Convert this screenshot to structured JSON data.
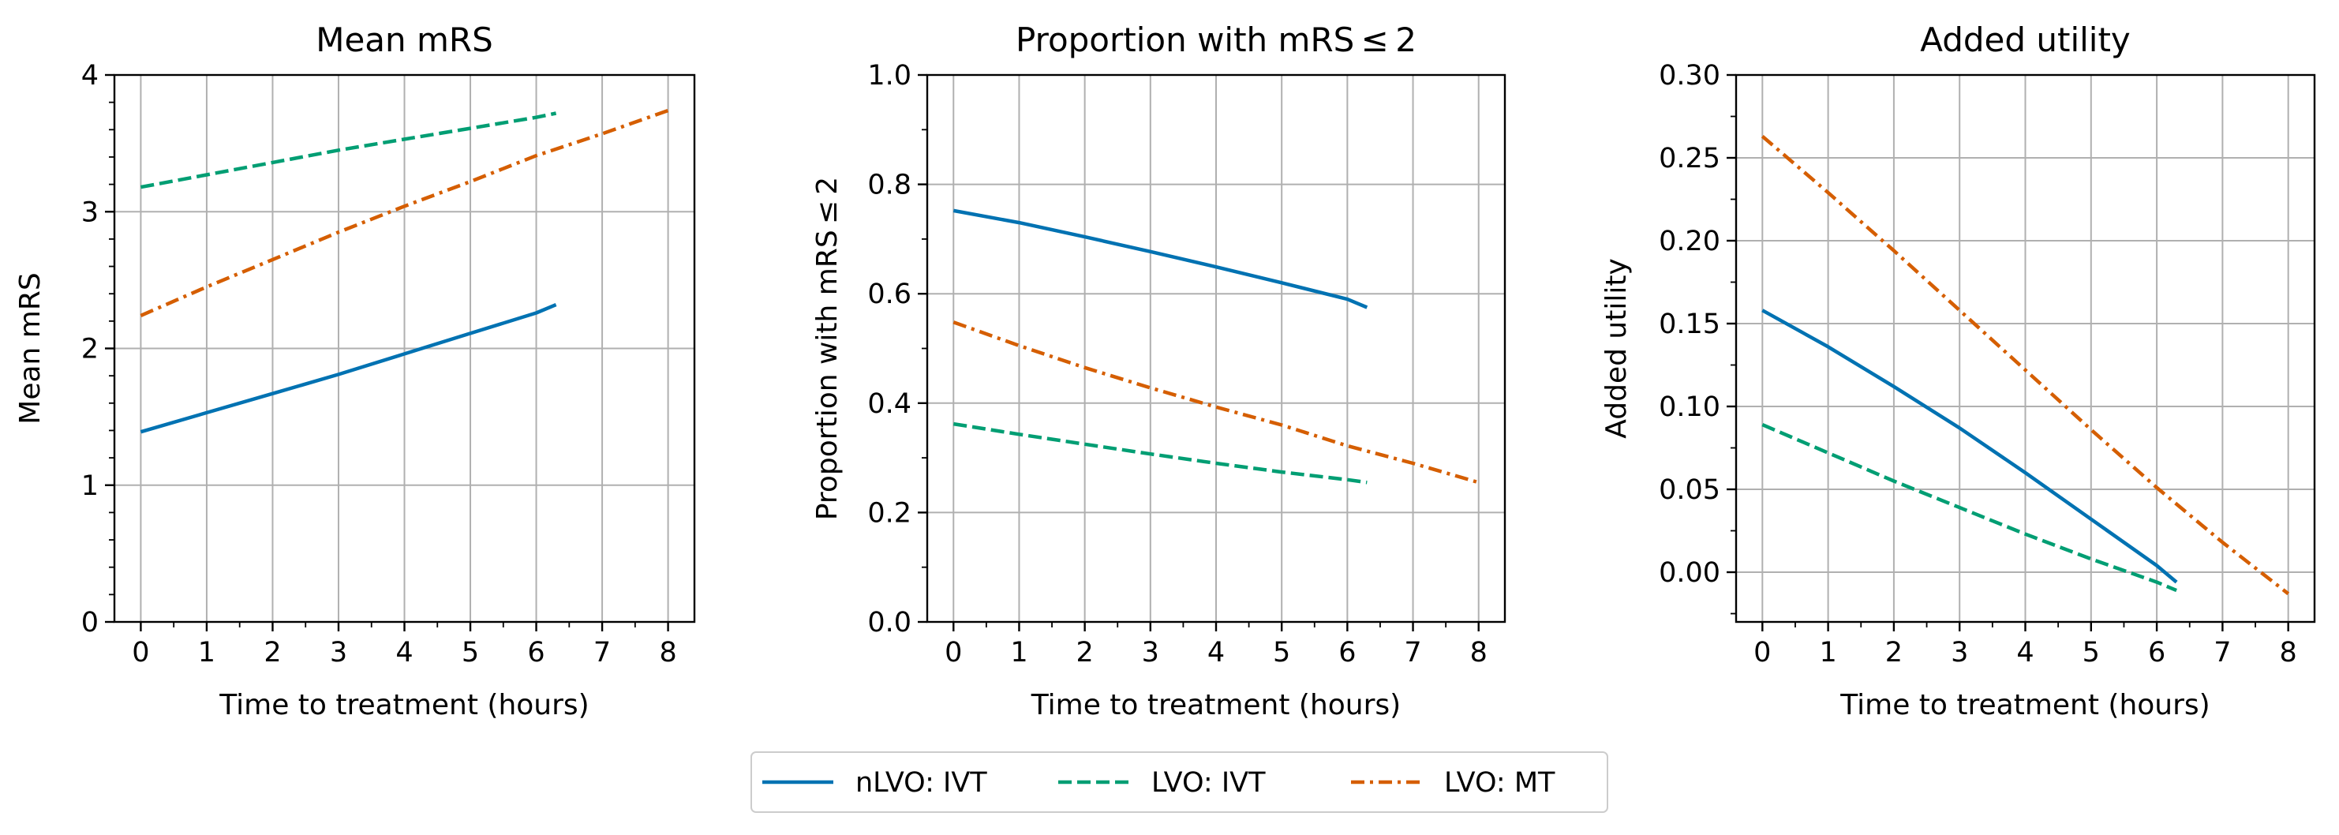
{
  "figure": {
    "x_time_points": {
      "ivt": [
        0,
        1,
        2,
        3,
        4,
        5,
        6,
        6.3
      ],
      "mt": [
        0,
        1,
        2,
        3,
        4,
        5,
        6,
        7,
        8
      ]
    },
    "legend": {
      "location": "bottom-center",
      "items": [
        {
          "label": "nLVO: IVT",
          "color": "#0072B2",
          "dash": "solid"
        },
        {
          "label": "LVO: IVT",
          "color": "#009E73",
          "dash": "dashed"
        },
        {
          "label": "LVO: MT",
          "color": "#D55E00",
          "dash": "dashdot"
        }
      ]
    }
  },
  "chart_data": [
    {
      "type": "line",
      "title": "Mean mRS",
      "xlabel": "Time to treatment (hours)",
      "ylabel": "Mean mRS",
      "xlim": [
        -0.4,
        8.4
      ],
      "ylim": [
        0,
        4
      ],
      "grid": true,
      "x_ticks": [
        "0",
        "1",
        "2",
        "3",
        "4",
        "5",
        "6",
        "7",
        "8"
      ],
      "y_ticks": [
        "0",
        "1",
        "2",
        "3",
        "4"
      ],
      "series": [
        {
          "name": "nLVO: IVT",
          "x": [
            0,
            1,
            2,
            3,
            4,
            5,
            6,
            6.3
          ],
          "y": [
            1.39,
            1.53,
            1.67,
            1.81,
            1.96,
            2.11,
            2.26,
            2.32
          ]
        },
        {
          "name": "LVO: IVT",
          "x": [
            0,
            1,
            2,
            3,
            4,
            5,
            6,
            6.3
          ],
          "y": [
            3.18,
            3.27,
            3.36,
            3.45,
            3.53,
            3.61,
            3.69,
            3.72
          ]
        },
        {
          "name": "LVO: MT",
          "x": [
            0,
            1,
            2,
            3,
            4,
            5,
            6,
            7,
            8
          ],
          "y": [
            2.24,
            2.45,
            2.65,
            2.85,
            3.04,
            3.22,
            3.41,
            3.57,
            3.74
          ]
        }
      ]
    },
    {
      "type": "line",
      "title": "Proportion with mRS ≤ 2",
      "xlabel": "Time to treatment (hours)",
      "ylabel": "Proportion with mRS ≤ 2",
      "xlim": [
        -0.4,
        8.4
      ],
      "ylim": [
        0.0,
        1.0
      ],
      "grid": true,
      "x_ticks": [
        "0",
        "1",
        "2",
        "3",
        "4",
        "5",
        "6",
        "7",
        "8"
      ],
      "y_ticks": [
        "0.0",
        "0.2",
        "0.4",
        "0.6",
        "0.8",
        "1.0"
      ],
      "series": [
        {
          "name": "nLVO: IVT",
          "x": [
            0,
            1,
            2,
            3,
            4,
            5,
            6,
            6.3
          ],
          "y": [
            0.752,
            0.73,
            0.704,
            0.677,
            0.649,
            0.62,
            0.59,
            0.575
          ]
        },
        {
          "name": "LVO: IVT",
          "x": [
            0,
            1,
            2,
            3,
            4,
            5,
            6,
            6.3
          ],
          "y": [
            0.362,
            0.343,
            0.325,
            0.307,
            0.29,
            0.274,
            0.26,
            0.255
          ]
        },
        {
          "name": "LVO: MT",
          "x": [
            0,
            1,
            2,
            3,
            4,
            5,
            6,
            7,
            8
          ],
          "y": [
            0.548,
            0.505,
            0.465,
            0.428,
            0.393,
            0.36,
            0.322,
            0.29,
            0.255
          ]
        }
      ]
    },
    {
      "type": "line",
      "title": "Added utility",
      "xlabel": "Time to treatment (hours)",
      "ylabel": "Added utility",
      "xlim": [
        -0.4,
        8.4
      ],
      "ylim": [
        -0.03,
        0.3
      ],
      "grid": true,
      "x_ticks": [
        "0",
        "1",
        "2",
        "3",
        "4",
        "5",
        "6",
        "7",
        "8"
      ],
      "y_ticks": [
        "0.00",
        "0.05",
        "0.10",
        "0.15",
        "0.20",
        "0.25",
        "0.30"
      ],
      "series": [
        {
          "name": "nLVO: IVT",
          "x": [
            0,
            1,
            2,
            3,
            4,
            5,
            6,
            6.3
          ],
          "y": [
            0.158,
            0.136,
            0.112,
            0.087,
            0.06,
            0.032,
            0.004,
            -0.006
          ]
        },
        {
          "name": "LVO: IVT",
          "x": [
            0,
            1,
            2,
            3,
            4,
            5,
            6,
            6.3
          ],
          "y": [
            0.089,
            0.072,
            0.055,
            0.039,
            0.023,
            0.008,
            -0.006,
            -0.011
          ]
        },
        {
          "name": "LVO: MT",
          "x": [
            0,
            1,
            2,
            3,
            4,
            5,
            6,
            7,
            8
          ],
          "y": [
            0.263,
            0.229,
            0.194,
            0.158,
            0.122,
            0.086,
            0.051,
            0.018,
            -0.013
          ]
        }
      ]
    }
  ]
}
